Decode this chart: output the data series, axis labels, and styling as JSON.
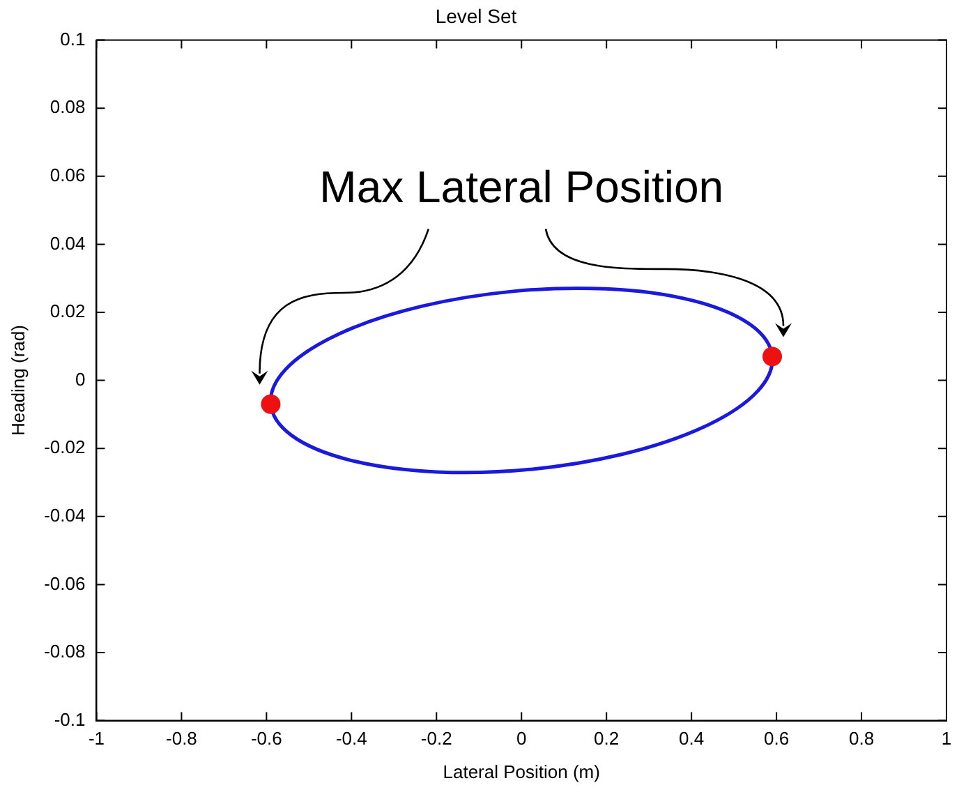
{
  "chart_data": {
    "type": "scatter",
    "title": "Level Set",
    "xlabel": "Lateral Position (m)",
    "ylabel": "Heading (rad)",
    "xlim": [
      -1,
      1
    ],
    "xticks": [
      -1,
      -0.8,
      -0.6,
      -0.4,
      -0.2,
      0,
      0.2,
      0.4,
      0.6,
      0.8,
      1
    ],
    "ylim": [
      -0.1,
      0.1
    ],
    "yticks": [
      -0.1,
      -0.08,
      -0.06,
      -0.04,
      -0.02,
      0,
      0.02,
      0.04,
      0.06,
      0.08,
      0.1
    ],
    "annotations": [
      "Max Lateral Position"
    ],
    "series": [
      {
        "marker": "circle",
        "color": "#ee1111",
        "x": [
          -0.59,
          0.59
        ],
        "values": [
          -0.007,
          0.007
        ]
      }
    ]
  }
}
